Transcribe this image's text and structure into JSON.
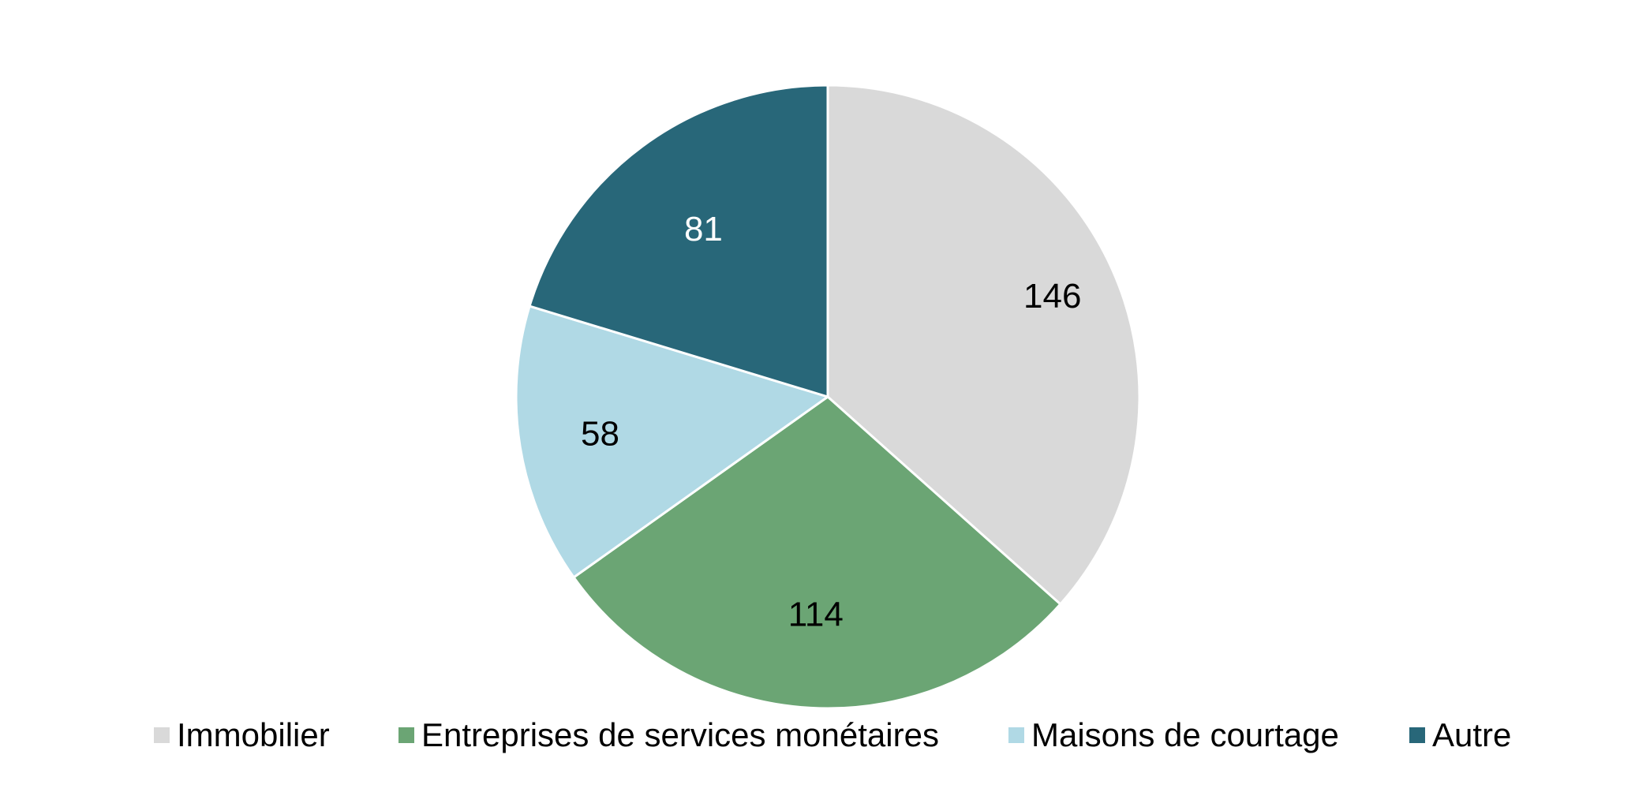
{
  "chart_data": {
    "type": "pie",
    "categories": [
      "Immobilier",
      "Entreprises de services monétaires",
      "Maisons de courtage",
      "Autre"
    ],
    "values": [
      146,
      114,
      58,
      81
    ],
    "colors": [
      "#d9d9d9",
      "#6ba574",
      "#b0d9e5",
      "#286779"
    ],
    "label_colors": [
      "#000000",
      "#000000",
      "#000000",
      "#ffffff"
    ],
    "start": "12 o'clock",
    "direction": "clockwise",
    "legend_position": "bottom"
  }
}
